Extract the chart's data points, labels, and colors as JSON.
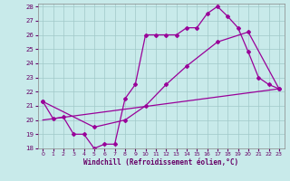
{
  "xlabel": "Windchill (Refroidissement éolien,°C)",
  "bg_color": "#c8eaea",
  "grid_color": "#a0c8c8",
  "line_color": "#990099",
  "xlim": [
    -0.5,
    23.5
  ],
  "ylim": [
    18,
    28.2
  ],
  "yticks": [
    18,
    19,
    20,
    21,
    22,
    23,
    24,
    25,
    26,
    27,
    28
  ],
  "xticks": [
    0,
    1,
    2,
    3,
    4,
    5,
    6,
    7,
    8,
    9,
    10,
    11,
    12,
    13,
    14,
    15,
    16,
    17,
    18,
    19,
    20,
    21,
    22,
    23
  ],
  "series1_x": [
    0,
    1,
    2,
    3,
    4,
    5,
    6,
    7,
    8,
    9,
    10,
    11,
    12,
    13,
    14,
    15,
    16,
    17,
    18,
    19,
    20,
    21,
    22,
    23
  ],
  "series1_y": [
    21.3,
    20.1,
    20.2,
    19.0,
    19.0,
    18.0,
    18.3,
    18.3,
    21.5,
    22.5,
    26.0,
    26.0,
    26.0,
    26.0,
    26.5,
    26.5,
    27.5,
    28.0,
    27.3,
    26.5,
    24.8,
    23.0,
    22.5,
    22.2
  ],
  "series2_x": [
    0,
    5,
    8,
    10,
    12,
    14,
    17,
    20,
    23
  ],
  "series2_y": [
    21.3,
    19.5,
    20.0,
    21.0,
    22.5,
    23.8,
    25.5,
    26.2,
    22.2
  ],
  "series3_x": [
    0,
    23
  ],
  "series3_y": [
    20.0,
    22.2
  ]
}
